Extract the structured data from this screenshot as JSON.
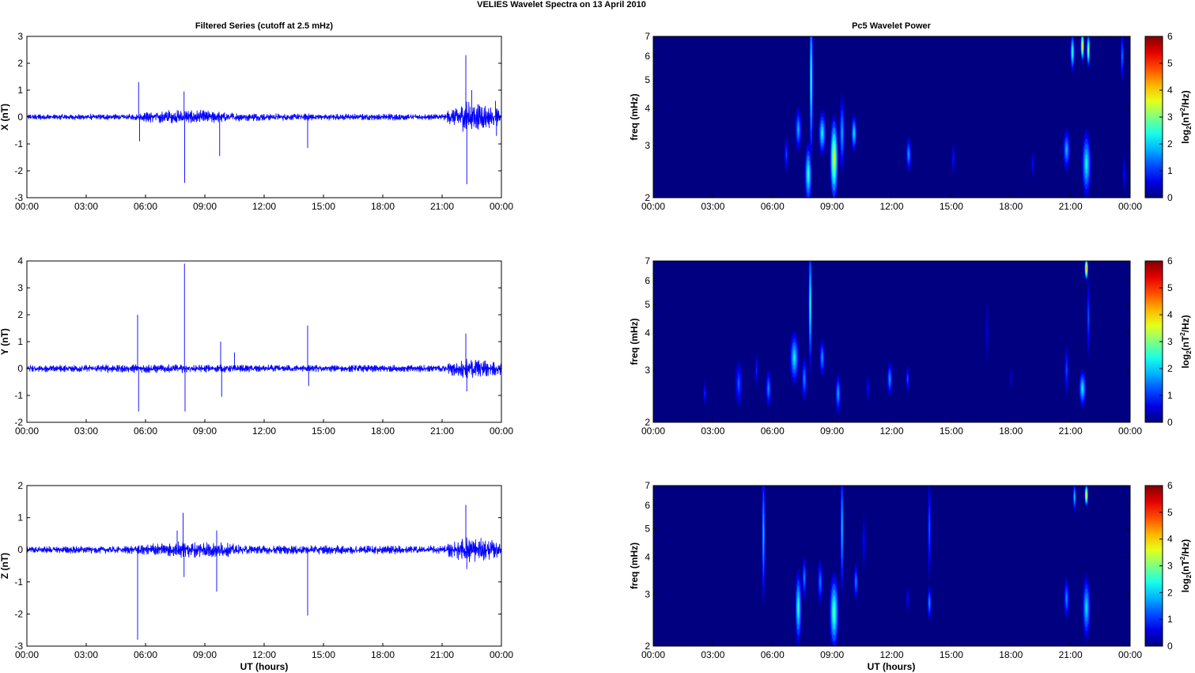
{
  "figure": {
    "title": "VELIES Wavelet Spectra on 13 April     2010",
    "left_title": "Filtered Series (cutoff at 2.5 mHz)",
    "right_title": "Pc5 Wavelet Power",
    "xlabel": "UT (hours)"
  },
  "chart_data": [
    {
      "type": "line",
      "component": "X",
      "ylabel": "X (nT)",
      "xlim": [
        0,
        24
      ],
      "ylim": [
        -3,
        3
      ],
      "yticks": [
        -3,
        -2,
        -1,
        0,
        1,
        2,
        3
      ],
      "xtick_labels": [
        "00:00",
        "03:00",
        "06:00",
        "09:00",
        "12:00",
        "15:00",
        "18:00",
        "21:00",
        "00:00"
      ],
      "noise_envelope": [
        [
          0,
          0.09
        ],
        [
          5,
          0.09
        ],
        [
          6,
          0.15
        ],
        [
          7,
          0.22
        ],
        [
          9,
          0.2
        ],
        [
          11,
          0.12
        ],
        [
          15,
          0.1
        ],
        [
          21,
          0.1
        ],
        [
          21.8,
          0.35
        ],
        [
          22.3,
          0.5
        ],
        [
          24,
          0.25
        ]
      ],
      "spikes": [
        {
          "x": 5.65,
          "y": 1.3
        },
        {
          "x": 5.7,
          "y": -0.9
        },
        {
          "x": 7.95,
          "y": 0.95
        },
        {
          "x": 7.98,
          "y": -2.45
        },
        {
          "x": 9.75,
          "y": -1.45
        },
        {
          "x": 14.2,
          "y": -1.15
        },
        {
          "x": 22.2,
          "y": 2.3
        },
        {
          "x": 22.25,
          "y": -2.5
        },
        {
          "x": 22.5,
          "y": 1.0
        },
        {
          "x": 23.7,
          "y": 0.6
        },
        {
          "x": 23.75,
          "y": -0.7
        }
      ]
    },
    {
      "type": "line",
      "component": "Y",
      "ylabel": "Y (nT)",
      "xlim": [
        0,
        24
      ],
      "ylim": [
        -2,
        4
      ],
      "yticks": [
        -2,
        -1,
        0,
        1,
        2,
        3,
        4
      ],
      "xtick_labels": [
        "00:00",
        "03:00",
        "06:00",
        "09:00",
        "12:00",
        "15:00",
        "18:00",
        "21:00",
        "00:00"
      ],
      "noise_envelope": [
        [
          0,
          0.1
        ],
        [
          4.5,
          0.13
        ],
        [
          6,
          0.14
        ],
        [
          9,
          0.12
        ],
        [
          21,
          0.11
        ],
        [
          22.2,
          0.35
        ],
        [
          24,
          0.2
        ]
      ],
      "spikes": [
        {
          "x": 5.6,
          "y": 2.0
        },
        {
          "x": 5.65,
          "y": -1.6
        },
        {
          "x": 7.97,
          "y": 3.9
        },
        {
          "x": 8.0,
          "y": -1.6
        },
        {
          "x": 9.8,
          "y": 1.0
        },
        {
          "x": 9.85,
          "y": -1.05
        },
        {
          "x": 10.5,
          "y": 0.6
        },
        {
          "x": 14.2,
          "y": 1.6
        },
        {
          "x": 14.25,
          "y": -0.65
        },
        {
          "x": 22.2,
          "y": 1.3
        },
        {
          "x": 22.25,
          "y": -0.85
        }
      ]
    },
    {
      "type": "line",
      "component": "Z",
      "ylabel": "Z (nT)",
      "xlim": [
        0,
        24
      ],
      "ylim": [
        -3,
        2
      ],
      "yticks": [
        -3,
        -2,
        -1,
        0,
        1,
        2
      ],
      "xtick_labels": [
        "00:00",
        "03:00",
        "06:00",
        "09:00",
        "12:00",
        "15:00",
        "18:00",
        "21:00",
        "00:00"
      ],
      "noise_envelope": [
        [
          0,
          0.09
        ],
        [
          5,
          0.1
        ],
        [
          7,
          0.2
        ],
        [
          9.5,
          0.22
        ],
        [
          11,
          0.12
        ],
        [
          21,
          0.11
        ],
        [
          22.2,
          0.35
        ],
        [
          24,
          0.2
        ]
      ],
      "spikes": [
        {
          "x": 5.6,
          "y": -2.8
        },
        {
          "x": 7.6,
          "y": 0.6
        },
        {
          "x": 7.9,
          "y": 1.15
        },
        {
          "x": 7.95,
          "y": -0.85
        },
        {
          "x": 9.6,
          "y": -1.3
        },
        {
          "x": 9.6,
          "y": 0.6
        },
        {
          "x": 14.2,
          "y": -2.05
        },
        {
          "x": 22.2,
          "y": 1.4
        },
        {
          "x": 22.25,
          "y": -0.6
        }
      ]
    },
    {
      "type": "heatmap",
      "component": "X",
      "ylabel": "freq (mHz)",
      "yscale": "log",
      "xlim": [
        0,
        24
      ],
      "ylim": [
        2,
        7
      ],
      "yticks": [
        2,
        3,
        4,
        5,
        6,
        7
      ],
      "xtick_labels": [
        "00:00",
        "03:00",
        "06:00",
        "09:00",
        "12:00",
        "15:00",
        "18:00",
        "21:00",
        "00:00"
      ],
      "colorbar": {
        "label": "log2(nT2/Hz)",
        "range": [
          0,
          6
        ],
        "ticks": [
          0,
          1,
          2,
          3,
          4,
          5,
          6
        ]
      },
      "blobs": [
        {
          "t": 6.7,
          "f": 2.8,
          "dt": 0.12,
          "df": 0.4,
          "v": 1.2
        },
        {
          "t": 7.3,
          "f": 3.4,
          "dt": 0.18,
          "df": 0.6,
          "v": 1.8
        },
        {
          "t": 7.8,
          "f": 2.4,
          "dt": 0.2,
          "df": 0.6,
          "v": 2.5
        },
        {
          "t": 7.95,
          "f": 5.0,
          "dt": 0.06,
          "df": 3.0,
          "v": 2.6
        },
        {
          "t": 8.5,
          "f": 3.3,
          "dt": 0.2,
          "df": 0.6,
          "v": 2.3
        },
        {
          "t": 9.1,
          "f": 2.7,
          "dt": 0.22,
          "df": 0.9,
          "v": 3.6
        },
        {
          "t": 9.5,
          "f": 3.3,
          "dt": 0.15,
          "df": 1.0,
          "v": 1.8
        },
        {
          "t": 10.1,
          "f": 3.3,
          "dt": 0.15,
          "df": 0.5,
          "v": 2.2
        },
        {
          "t": 12.85,
          "f": 2.8,
          "dt": 0.15,
          "df": 0.4,
          "v": 1.7
        },
        {
          "t": 15.1,
          "f": 2.7,
          "dt": 0.08,
          "df": 0.35,
          "v": 0.9
        },
        {
          "t": 19.1,
          "f": 2.6,
          "dt": 0.08,
          "df": 0.3,
          "v": 0.8
        },
        {
          "t": 20.8,
          "f": 2.9,
          "dt": 0.2,
          "df": 0.5,
          "v": 1.8
        },
        {
          "t": 21.8,
          "f": 2.6,
          "dt": 0.25,
          "df": 0.7,
          "v": 2.3
        },
        {
          "t": 21.1,
          "f": 6.2,
          "dt": 0.12,
          "df": 1.0,
          "v": 2.6
        },
        {
          "t": 21.6,
          "f": 6.5,
          "dt": 0.06,
          "df": 0.8,
          "v": 4.0
        },
        {
          "t": 21.9,
          "f": 6.3,
          "dt": 0.06,
          "df": 0.9,
          "v": 3.2
        },
        {
          "t": 23.6,
          "f": 6.0,
          "dt": 0.06,
          "df": 1.2,
          "v": 1.5
        },
        {
          "t": 23.7,
          "f": 2.4,
          "dt": 0.05,
          "df": 0.4,
          "v": 0.8
        }
      ]
    },
    {
      "type": "heatmap",
      "component": "Y",
      "ylabel": "freq (mHz)",
      "yscale": "log",
      "xlim": [
        0,
        24
      ],
      "ylim": [
        2,
        7
      ],
      "yticks": [
        2,
        3,
        4,
        5,
        6,
        7
      ],
      "xtick_labels": [
        "00:00",
        "03:00",
        "06:00",
        "09:00",
        "12:00",
        "15:00",
        "18:00",
        "21:00",
        "00:00"
      ],
      "colorbar": {
        "label": "log2(nT2/Hz)",
        "range": [
          0,
          6
        ],
        "ticks": [
          0,
          1,
          2,
          3,
          4,
          5,
          6
        ]
      },
      "blobs": [
        {
          "t": 2.6,
          "f": 2.5,
          "dt": 0.1,
          "df": 0.25,
          "v": 1.0
        },
        {
          "t": 4.3,
          "f": 2.7,
          "dt": 0.2,
          "df": 0.5,
          "v": 1.3
        },
        {
          "t": 5.2,
          "f": 3.0,
          "dt": 0.1,
          "df": 0.4,
          "v": 1.0
        },
        {
          "t": 5.8,
          "f": 2.6,
          "dt": 0.15,
          "df": 0.4,
          "v": 1.6
        },
        {
          "t": 7.1,
          "f": 3.3,
          "dt": 0.25,
          "df": 0.7,
          "v": 2.2
        },
        {
          "t": 7.6,
          "f": 2.8,
          "dt": 0.15,
          "df": 0.5,
          "v": 1.6
        },
        {
          "t": 7.9,
          "f": 5.0,
          "dt": 0.05,
          "df": 2.5,
          "v": 2.5
        },
        {
          "t": 8.5,
          "f": 3.3,
          "dt": 0.15,
          "df": 0.5,
          "v": 1.7
        },
        {
          "t": 9.3,
          "f": 2.5,
          "dt": 0.15,
          "df": 0.4,
          "v": 1.8
        },
        {
          "t": 10.8,
          "f": 2.6,
          "dt": 0.08,
          "df": 0.3,
          "v": 0.8
        },
        {
          "t": 11.9,
          "f": 2.8,
          "dt": 0.15,
          "df": 0.4,
          "v": 1.7
        },
        {
          "t": 12.8,
          "f": 2.8,
          "dt": 0.1,
          "df": 0.3,
          "v": 1.3
        },
        {
          "t": 16.8,
          "f": 4.0,
          "dt": 0.05,
          "df": 1.0,
          "v": 0.6
        },
        {
          "t": 18.0,
          "f": 2.8,
          "dt": 0.06,
          "df": 0.3,
          "v": 0.5
        },
        {
          "t": 20.8,
          "f": 3.0,
          "dt": 0.12,
          "df": 0.6,
          "v": 1.2
        },
        {
          "t": 21.6,
          "f": 2.6,
          "dt": 0.2,
          "df": 0.4,
          "v": 2.2
        },
        {
          "t": 21.8,
          "f": 6.6,
          "dt": 0.06,
          "df": 0.6,
          "v": 4.5
        },
        {
          "t": 21.9,
          "f": 4.5,
          "dt": 0.08,
          "df": 1.4,
          "v": 1.3
        }
      ]
    },
    {
      "type": "heatmap",
      "component": "Z",
      "ylabel": "freq (mHz)",
      "yscale": "log",
      "xlim": [
        0,
        24
      ],
      "ylim": [
        2,
        7
      ],
      "yticks": [
        2,
        3,
        4,
        5,
        6,
        7
      ],
      "xtick_labels": [
        "00:00",
        "03:00",
        "06:00",
        "09:00",
        "12:00",
        "15:00",
        "18:00",
        "21:00",
        "00:00"
      ],
      "colorbar": {
        "label": "log2(nT2/Hz)",
        "range": [
          0,
          6
        ],
        "ticks": [
          0,
          1,
          2,
          3,
          4,
          5,
          6
        ]
      },
      "blobs": [
        {
          "t": 5.55,
          "f": 4.8,
          "dt": 0.05,
          "df": 2.5,
          "v": 2.0
        },
        {
          "t": 7.3,
          "f": 2.7,
          "dt": 0.18,
          "df": 0.8,
          "v": 2.5
        },
        {
          "t": 7.6,
          "f": 3.4,
          "dt": 0.12,
          "df": 0.6,
          "v": 1.6
        },
        {
          "t": 8.4,
          "f": 3.3,
          "dt": 0.15,
          "df": 0.6,
          "v": 1.5
        },
        {
          "t": 9.1,
          "f": 2.6,
          "dt": 0.25,
          "df": 0.8,
          "v": 2.8
        },
        {
          "t": 9.5,
          "f": 5.0,
          "dt": 0.05,
          "df": 2.5,
          "v": 2.0
        },
        {
          "t": 10.2,
          "f": 3.3,
          "dt": 0.12,
          "df": 0.5,
          "v": 1.6
        },
        {
          "t": 10.6,
          "f": 4.5,
          "dt": 0.06,
          "df": 1.0,
          "v": 0.8
        },
        {
          "t": 12.8,
          "f": 2.9,
          "dt": 0.08,
          "df": 0.3,
          "v": 0.8
        },
        {
          "t": 13.9,
          "f": 2.8,
          "dt": 0.12,
          "df": 0.4,
          "v": 1.7
        },
        {
          "t": 13.9,
          "f": 5.0,
          "dt": 0.05,
          "df": 2.0,
          "v": 1.4
        },
        {
          "t": 20.8,
          "f": 2.9,
          "dt": 0.15,
          "df": 0.5,
          "v": 1.6
        },
        {
          "t": 21.8,
          "f": 2.7,
          "dt": 0.22,
          "df": 0.7,
          "v": 2.1
        },
        {
          "t": 21.2,
          "f": 6.4,
          "dt": 0.08,
          "df": 0.8,
          "v": 2.0
        },
        {
          "t": 21.8,
          "f": 6.5,
          "dt": 0.05,
          "df": 0.6,
          "v": 4.0
        }
      ]
    }
  ]
}
